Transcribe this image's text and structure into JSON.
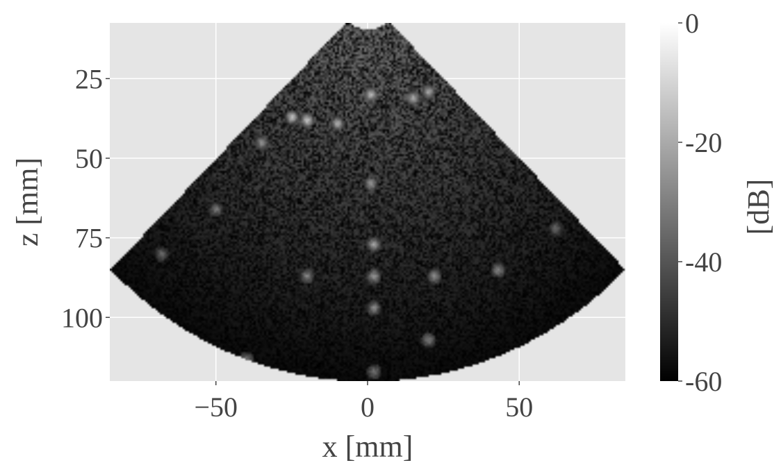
{
  "chart_data": {
    "type": "heatmap",
    "subtype": "ultrasound B-mode image (sector scan)",
    "xlabel": "x [mm]",
    "ylabel": "z [mm]",
    "xlim": [
      -85,
      85
    ],
    "ylim": [
      120,
      7.5
    ],
    "y_inverted": true,
    "xticks": [
      -50,
      0,
      50
    ],
    "xtick_labels": [
      "−50",
      "0",
      "50"
    ],
    "yticks": [
      25,
      50,
      75,
      100
    ],
    "ytick_labels": [
      "25",
      "50",
      "75",
      "100"
    ],
    "grid": true,
    "background_color": "#e5e5e5",
    "colormap": "gray",
    "colorbar": {
      "label": "[dB]",
      "range": [
        -60,
        0
      ],
      "ticks": [
        0,
        -20,
        -40,
        -60
      ],
      "tick_labels": [
        "0",
        "-20",
        "-40",
        "-60"
      ]
    },
    "sector": {
      "apex_mm": [
        0,
        0
      ],
      "half_angle_deg": 45,
      "depth_range_mm": [
        9.5,
        120
      ]
    }
  }
}
